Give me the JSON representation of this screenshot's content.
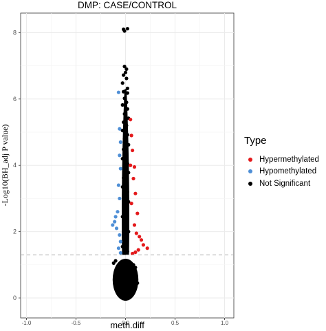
{
  "chart_data": {
    "type": "scatter",
    "title": "DMP: CASE/CONTROL",
    "xlabel": "meth.diff",
    "ylabel": "-Log10(BH_adj P value)",
    "xlim": [
      -1.0,
      1.0
    ],
    "ylim": [
      0,
      8.3
    ],
    "x_ticks": [
      -1.0,
      -0.5,
      0.0,
      0.5,
      1.0
    ],
    "x_tick_labels": [
      "-1.0",
      "-0.5",
      "0.0",
      "0.5",
      "1.0"
    ],
    "y_ticks": [
      0,
      2,
      4,
      6,
      8
    ],
    "y_tick_labels": [
      "0",
      "2",
      "4",
      "6",
      "8"
    ],
    "grid": true,
    "threshold_line": {
      "y": 1.3,
      "style": "dashed"
    },
    "legend": {
      "title": "Type",
      "placement": "right",
      "entries": [
        {
          "name": "Hypermethylated",
          "color": "#e41a1c"
        },
        {
          "name": "Hypomethylated",
          "color": "#4f8fd6"
        },
        {
          "name": "Not Significant",
          "color": "#000000"
        }
      ]
    },
    "series": [
      {
        "name": "Not Significant",
        "color": "#000000",
        "points": [
          [
            -0.02,
            8.1
          ],
          [
            0.02,
            8.12
          ],
          [
            -0.01,
            8.05
          ],
          [
            -0.01,
            6.98
          ],
          [
            0.01,
            6.9
          ],
          [
            0.0,
            6.8
          ],
          [
            -0.02,
            6.72
          ],
          [
            0.01,
            6.62
          ],
          [
            -0.03,
            6.48
          ],
          [
            0.02,
            6.32
          ],
          [
            -0.02,
            6.22
          ],
          [
            0.02,
            6.18
          ],
          [
            -0.01,
            6.02
          ],
          [
            0.01,
            5.9
          ],
          [
            -0.03,
            5.82
          ],
          [
            0.02,
            5.7
          ],
          [
            -0.01,
            5.55
          ],
          [
            0.03,
            5.42
          ],
          [
            -0.02,
            5.3
          ],
          [
            0.01,
            5.2
          ],
          [
            -0.03,
            5.05
          ],
          [
            0.02,
            4.92
          ],
          [
            -0.01,
            4.8
          ],
          [
            0.03,
            4.62
          ],
          [
            -0.02,
            4.48
          ],
          [
            0.01,
            4.35
          ],
          [
            -0.03,
            4.2
          ],
          [
            0.02,
            4.05
          ],
          [
            -0.01,
            3.9
          ],
          [
            0.03,
            3.78
          ],
          [
            -0.02,
            3.62
          ],
          [
            0.01,
            3.5
          ],
          [
            -0.03,
            3.35
          ],
          [
            0.02,
            3.2
          ],
          [
            -0.01,
            3.05
          ],
          [
            0.03,
            2.9
          ],
          [
            -0.02,
            2.75
          ],
          [
            0.01,
            2.6
          ],
          [
            -0.03,
            2.45
          ],
          [
            0.02,
            2.3
          ],
          [
            -0.01,
            2.15
          ],
          [
            0.03,
            2.0
          ],
          [
            -0.02,
            1.85
          ],
          [
            0.01,
            1.7
          ],
          [
            -0.03,
            1.55
          ],
          [
            0.02,
            1.4
          ],
          [
            -0.1,
            1.12
          ],
          [
            -0.12,
            1.05
          ],
          [
            -0.08,
            0.95
          ],
          [
            0.08,
            1.0
          ],
          [
            0.1,
            0.92
          ],
          [
            -0.09,
            0.78
          ],
          [
            0.09,
            0.82
          ],
          [
            -0.07,
            0.6
          ],
          [
            0.07,
            0.55
          ],
          [
            -0.11,
            0.5
          ],
          [
            0.12,
            0.45
          ]
        ]
      },
      {
        "name": "Hypermethylated",
        "color": "#e41a1c",
        "points": [
          [
            0.05,
            5.38
          ],
          [
            0.06,
            4.9
          ],
          [
            0.07,
            4.45
          ],
          [
            0.09,
            3.95
          ],
          [
            0.08,
            3.6
          ],
          [
            0.1,
            3.15
          ],
          [
            0.06,
            2.85
          ],
          [
            0.12,
            2.55
          ],
          [
            0.09,
            2.2
          ],
          [
            0.11,
            1.95
          ],
          [
            0.14,
            1.85
          ],
          [
            0.16,
            1.75
          ],
          [
            0.18,
            1.6
          ],
          [
            0.22,
            1.5
          ],
          [
            0.13,
            1.45
          ],
          [
            0.1,
            1.38
          ],
          [
            0.07,
            1.34
          ],
          [
            0.05,
            4.0
          ]
        ]
      },
      {
        "name": "Hypomethylated",
        "color": "#4f8fd6",
        "points": [
          [
            -0.07,
            6.2
          ],
          [
            -0.06,
            5.1
          ],
          [
            -0.05,
            4.7
          ],
          [
            -0.06,
            4.3
          ],
          [
            -0.05,
            3.9
          ],
          [
            -0.07,
            3.4
          ],
          [
            -0.06,
            3.0
          ],
          [
            -0.08,
            2.6
          ],
          [
            -0.1,
            2.45
          ],
          [
            -0.11,
            2.3
          ],
          [
            -0.13,
            2.2
          ],
          [
            -0.09,
            2.1
          ],
          [
            -0.06,
            1.9
          ],
          [
            -0.05,
            1.7
          ],
          [
            -0.07,
            1.5
          ],
          [
            -0.05,
            1.36
          ]
        ]
      }
    ]
  }
}
